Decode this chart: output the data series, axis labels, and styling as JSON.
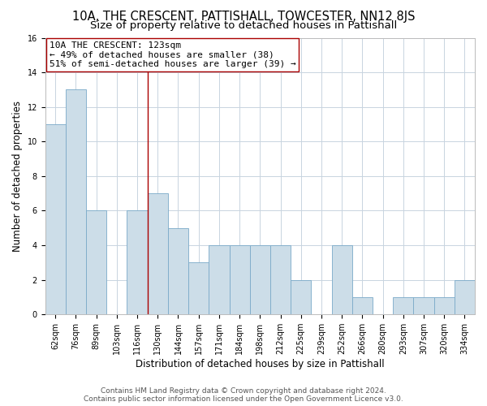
{
  "title": "10A, THE CRESCENT, PATTISHALL, TOWCESTER, NN12 8JS",
  "subtitle": "Size of property relative to detached houses in Pattishall",
  "xlabel": "Distribution of detached houses by size in Pattishall",
  "ylabel": "Number of detached properties",
  "bin_labels": [
    "62sqm",
    "76sqm",
    "89sqm",
    "103sqm",
    "116sqm",
    "130sqm",
    "144sqm",
    "157sqm",
    "171sqm",
    "184sqm",
    "198sqm",
    "212sqm",
    "225sqm",
    "239sqm",
    "252sqm",
    "266sqm",
    "280sqm",
    "293sqm",
    "307sqm",
    "320sqm",
    "334sqm"
  ],
  "bar_values": [
    11,
    13,
    6,
    0,
    6,
    7,
    5,
    3,
    4,
    4,
    4,
    4,
    2,
    0,
    4,
    1,
    0,
    1,
    1,
    1,
    2
  ],
  "bar_color": "#ccdde8",
  "bar_edge_color": "#7aaac8",
  "vline_color": "#aa0000",
  "vline_x_index": 4.5,
  "annotation_text": "10A THE CRESCENT: 123sqm\n← 49% of detached houses are smaller (38)\n51% of semi-detached houses are larger (39) →",
  "annotation_box_edgecolor": "#aa0000",
  "annotation_box_facecolor": "#ffffff",
  "ylim": [
    0,
    16
  ],
  "yticks": [
    0,
    2,
    4,
    6,
    8,
    10,
    12,
    14,
    16
  ],
  "footer_text": "Contains HM Land Registry data © Crown copyright and database right 2024.\nContains public sector information licensed under the Open Government Licence v3.0.",
  "background_color": "#ffffff",
  "grid_color": "#c8d4e0",
  "title_fontsize": 10.5,
  "subtitle_fontsize": 9.5,
  "axis_label_fontsize": 8.5,
  "tick_fontsize": 7,
  "annotation_fontsize": 8,
  "footer_fontsize": 6.5
}
